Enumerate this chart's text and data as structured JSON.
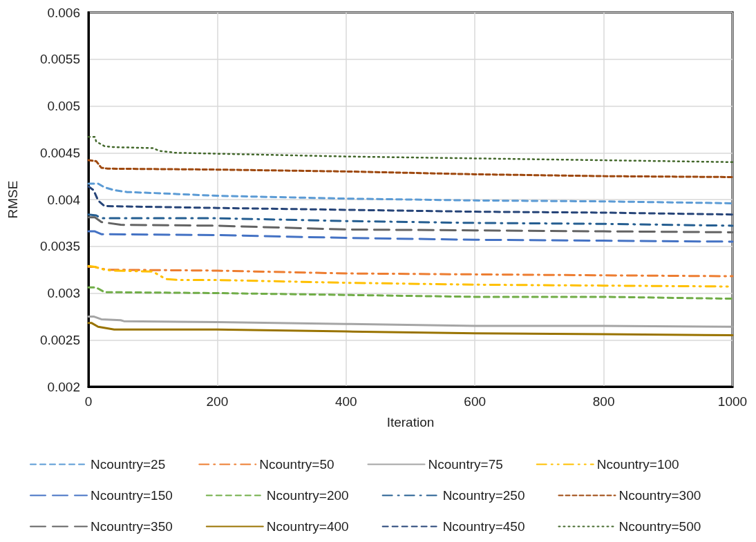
{
  "chart_data": {
    "type": "line",
    "xlabel": "Iteration",
    "ylabel": "RMSE",
    "xlim": [
      0,
      1000
    ],
    "xticks": [
      0,
      200,
      400,
      600,
      800,
      1000
    ],
    "ylim": [
      0.002,
      0.006
    ],
    "yticks": [
      0.002,
      0.0025,
      0.003,
      0.0035,
      0.004,
      0.0045,
      0.005,
      0.0055,
      0.006
    ],
    "grid": true,
    "legend": "bottom",
    "marker": "none",
    "series": [
      {
        "name": "Ncountry=25",
        "color": "#5b9bd5",
        "line_style": "dashed",
        "x": [
          0,
          15,
          25,
          40,
          60,
          100,
          200,
          400,
          600,
          800,
          1000
        ],
        "values": [
          0.00417,
          0.00417,
          0.00413,
          0.0041,
          0.00408,
          0.00407,
          0.00404,
          0.00401,
          0.00399,
          0.00398,
          0.00396
        ]
      },
      {
        "name": "Ncountry=50",
        "color": "#ed7d31",
        "line_style": "dashdot",
        "x": [
          0,
          10,
          20,
          30,
          200,
          400,
          600,
          800,
          1000
        ],
        "values": [
          0.00328,
          0.00328,
          0.00326,
          0.00325,
          0.00324,
          0.00321,
          0.0032,
          0.00319,
          0.00318
        ]
      },
      {
        "name": "Ncountry=75",
        "color": "#a5a5a5",
        "line_style": "solid",
        "x": [
          0,
          8,
          20,
          50,
          55,
          200,
          400,
          600,
          800,
          1000
        ],
        "values": [
          0.00275,
          0.00275,
          0.00272,
          0.00271,
          0.0027,
          0.00269,
          0.00267,
          0.00265,
          0.00265,
          0.00264
        ]
      },
      {
        "name": "Ncountry=100",
        "color": "#ffc000",
        "line_style": "dashdotdot",
        "x": [
          0,
          10,
          25,
          40,
          100,
          110,
          120,
          140,
          200,
          400,
          600,
          800,
          1000
        ],
        "values": [
          0.00329,
          0.00328,
          0.00325,
          0.00324,
          0.00323,
          0.00319,
          0.00315,
          0.00314,
          0.00314,
          0.00311,
          0.00309,
          0.00308,
          0.00307
        ]
      },
      {
        "name": "Ncountry=150",
        "color": "#4472c4",
        "line_style": "longdash",
        "x": [
          0,
          10,
          20,
          200,
          400,
          600,
          800,
          1000
        ],
        "values": [
          0.00366,
          0.00366,
          0.00363,
          0.00362,
          0.00359,
          0.00357,
          0.00356,
          0.00355
        ]
      },
      {
        "name": "Ncountry=200",
        "color": "#70ad47",
        "line_style": "dashed",
        "x": [
          0,
          12,
          25,
          200,
          400,
          600,
          800,
          1000
        ],
        "values": [
          0.00306,
          0.00306,
          0.00301,
          0.003,
          0.00298,
          0.00296,
          0.00296,
          0.00294
        ]
      },
      {
        "name": "Ncountry=250",
        "color": "#255e91",
        "line_style": "longdashdot",
        "x": [
          0,
          12,
          20,
          200,
          400,
          600,
          800,
          1000
        ],
        "values": [
          0.00384,
          0.00383,
          0.0038,
          0.0038,
          0.00377,
          0.00375,
          0.00374,
          0.00372
        ]
      },
      {
        "name": "Ncountry=300",
        "color": "#9e480e",
        "line_style": "shortdash",
        "x": [
          0,
          12,
          20,
          30,
          200,
          400,
          600,
          800,
          1000
        ],
        "values": [
          0.00442,
          0.00441,
          0.00434,
          0.00433,
          0.00432,
          0.0043,
          0.00427,
          0.00425,
          0.00424
        ]
      },
      {
        "name": "Ncountry=350",
        "color": "#636363",
        "line_style": "longdash",
        "x": [
          0,
          10,
          20,
          30,
          50,
          200,
          400,
          600,
          800,
          1000
        ],
        "values": [
          0.00381,
          0.00381,
          0.00376,
          0.00375,
          0.00373,
          0.00372,
          0.00368,
          0.00367,
          0.00366,
          0.00365
        ]
      },
      {
        "name": "Ncountry=400",
        "color": "#997300",
        "line_style": "solid",
        "x": [
          0,
          5,
          15,
          40,
          200,
          400,
          600,
          800,
          1000
        ],
        "values": [
          0.00268,
          0.00268,
          0.00264,
          0.00261,
          0.00261,
          0.00259,
          0.00257,
          0.00256,
          0.00255
        ]
      },
      {
        "name": "Ncountry=450",
        "color": "#264478",
        "line_style": "dashed",
        "x": [
          0,
          8,
          15,
          25,
          200,
          400,
          600,
          800,
          1000
        ],
        "values": [
          0.00414,
          0.0041,
          0.00399,
          0.00393,
          0.00391,
          0.00389,
          0.00387,
          0.00386,
          0.00384
        ]
      },
      {
        "name": "Ncountry=500",
        "color": "#43682b",
        "line_style": "dotted",
        "x": [
          0,
          10,
          12,
          25,
          40,
          100,
          110,
          135,
          200,
          400,
          600,
          800,
          1000
        ],
        "values": [
          0.00467,
          0.00467,
          0.00462,
          0.00457,
          0.00456,
          0.00455,
          0.00452,
          0.0045,
          0.00449,
          0.00446,
          0.00444,
          0.00442,
          0.0044
        ]
      }
    ]
  }
}
